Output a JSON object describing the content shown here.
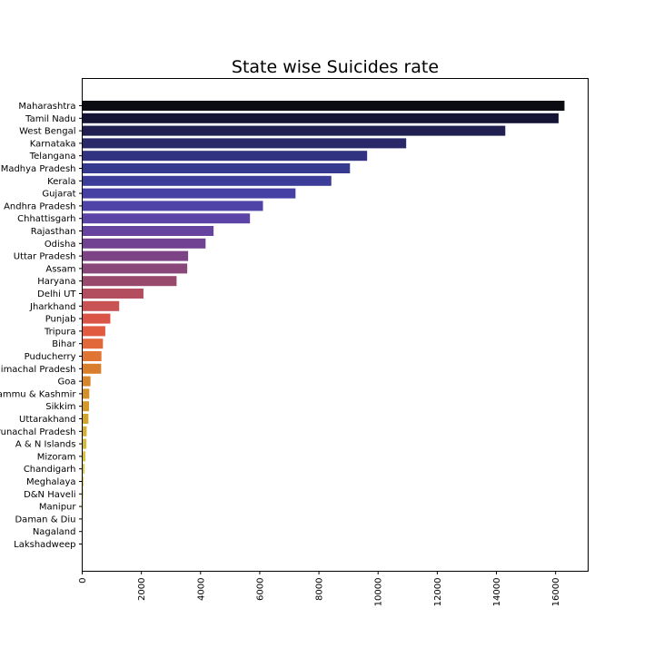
{
  "chart_data": {
    "type": "bar",
    "orientation": "horizontal",
    "title": "State wise Suicides rate",
    "xlabel": "",
    "ylabel": "",
    "xlim": [
      0,
      17100
    ],
    "xticks": [
      0,
      2000,
      4000,
      6000,
      8000,
      10000,
      12000,
      14000,
      16000
    ],
    "grid": false,
    "colormap": "CMRmap",
    "categories": [
      "Maharashtra",
      "Tamil Nadu",
      "West Bengal",
      "Karnataka",
      "Telangana",
      "Madhya Pradesh",
      "Kerala",
      "Gujarat",
      "Andhra Pradesh",
      "Chhattisgarh",
      "Rajasthan",
      "Odisha",
      "Uttar Pradesh",
      "Assam",
      "Haryana",
      "Delhi UT",
      "Jharkhand",
      "Punjab",
      "Tripura",
      "Bihar",
      "Puducherry",
      "Himachal Pradesh",
      "Goa",
      "Jammu & Kashmir",
      "Sikkim",
      "Uttarakhand",
      "Arunachal Pradesh",
      "A & N Islands",
      "Mizoram",
      "Chandigarh",
      "Meghalaya",
      "D&N Haveli",
      "Manipur",
      "Daman & Diu",
      "Nagaland",
      "Lakshadweep"
    ],
    "values": [
      16300,
      16100,
      14300,
      10950,
      9630,
      9050,
      8420,
      7210,
      6110,
      5670,
      4440,
      4170,
      3580,
      3550,
      3190,
      2070,
      1250,
      950,
      780,
      700,
      650,
      640,
      280,
      240,
      230,
      210,
      150,
      140,
      110,
      80,
      50,
      40,
      30,
      20,
      10,
      3
    ],
    "colors": [
      "#0b0b12",
      "#151434",
      "#1f1f50",
      "#29296a",
      "#313380",
      "#353a8f",
      "#3b3d98",
      "#4540a3",
      "#5043a8",
      "#5b44a6",
      "#66439e",
      "#714291",
      "#7c4485",
      "#8a4779",
      "#98496c",
      "#b24e5e",
      "#c85254",
      "#da5447",
      "#e05b3f",
      "#e26739",
      "#e07533",
      "#d97e2d",
      "#d6852a",
      "#d38f29",
      "#d29a2a",
      "#d3a52c",
      "#d4b030",
      "#d6b936",
      "#d8c23d",
      "#dccc47",
      "#e0d452",
      "#e4db61",
      "#e9e272",
      "#efe985",
      "#f4ef9a",
      "#f8f4b3"
    ]
  }
}
